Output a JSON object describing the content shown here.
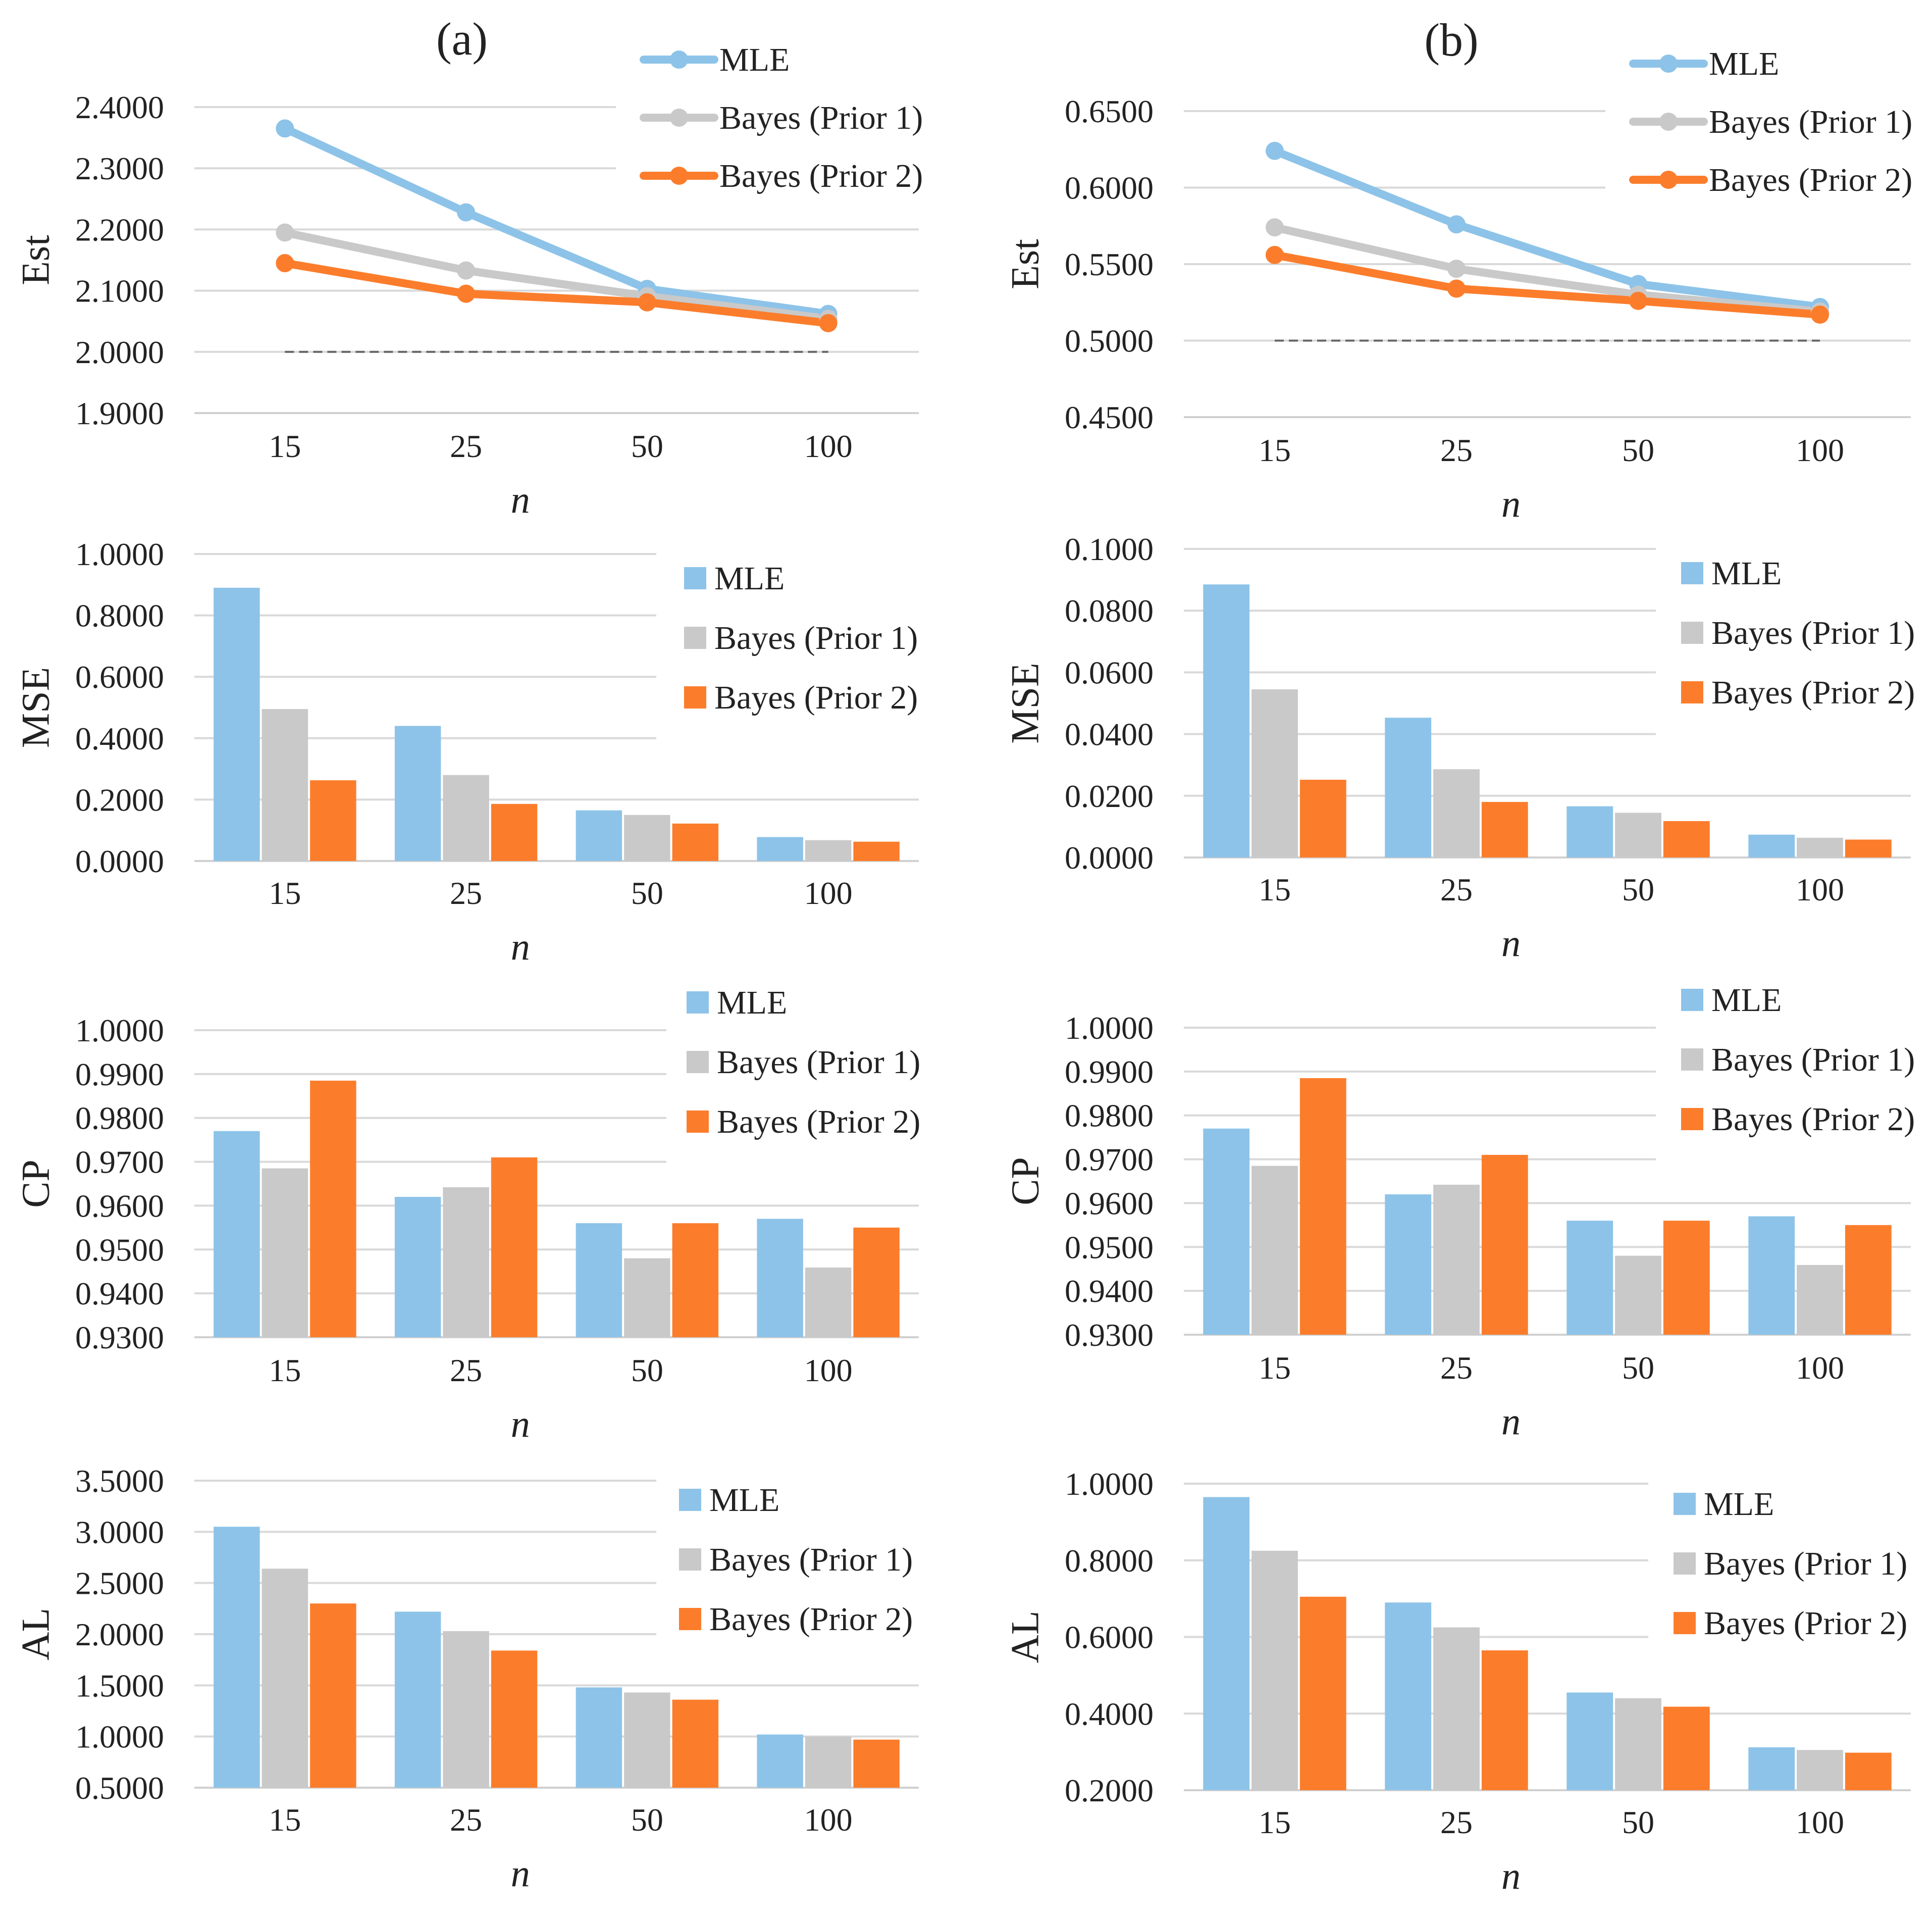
{
  "colors": {
    "mle": "#8dc3e8",
    "prior1": "#c9c9c9",
    "prior2": "#fb7d2c",
    "grid": "#d9d9d9",
    "dashed": "#666666",
    "baseline": "#d0d0d0"
  },
  "chart_data": [
    {
      "id": "a-est",
      "panel": "(a)",
      "type": "line",
      "ylabel": "Est",
      "xlabel": "n",
      "categories": [
        "15",
        "25",
        "50",
        "100"
      ],
      "ylim": [
        1.9,
        2.4
      ],
      "yticks": [
        "1.9000",
        "2.0000",
        "2.1000",
        "2.2000",
        "2.3000",
        "2.4000"
      ],
      "reference": 2.0,
      "legend": "top-right",
      "series": [
        {
          "name": "MLE",
          "key": "mle",
          "values": [
            2.365,
            2.228,
            2.103,
            2.062
          ]
        },
        {
          "name": "Bayes (Prior 1)",
          "key": "prior1",
          "values": [
            2.195,
            2.133,
            2.091,
            2.054
          ]
        },
        {
          "name": "Bayes (Prior 2)",
          "key": "prior2",
          "values": [
            2.145,
            2.095,
            2.081,
            2.047
          ]
        }
      ]
    },
    {
      "id": "b-est",
      "panel": "(b)",
      "type": "line",
      "ylabel": "Est",
      "xlabel": "n",
      "categories": [
        "15",
        "25",
        "50",
        "100"
      ],
      "ylim": [
        0.45,
        0.65
      ],
      "yticks": [
        "0.4500",
        "0.5000",
        "0.5500",
        "0.6000",
        "0.6500"
      ],
      "reference": 0.5,
      "legend": "top-right",
      "series": [
        {
          "name": "MLE",
          "key": "mle",
          "values": [
            0.624,
            0.576,
            0.537,
            0.522
          ]
        },
        {
          "name": "Bayes (Prior 1)",
          "key": "prior1",
          "values": [
            0.574,
            0.547,
            0.53,
            0.519
          ]
        },
        {
          "name": "Bayes (Prior 2)",
          "key": "prior2",
          "values": [
            0.556,
            0.534,
            0.526,
            0.517
          ]
        }
      ]
    },
    {
      "id": "a-mse",
      "type": "bar",
      "ylabel": "MSE",
      "xlabel": "n",
      "categories": [
        "15",
        "25",
        "50",
        "100"
      ],
      "ylim": [
        0,
        1.0
      ],
      "yticks": [
        "0.0000",
        "0.2000",
        "0.4000",
        "0.6000",
        "0.8000",
        "1.0000"
      ],
      "legend": "top-right",
      "series": [
        {
          "name": "MLE",
          "key": "mle",
          "values": [
            0.89,
            0.44,
            0.165,
            0.078
          ]
        },
        {
          "name": "Bayes (Prior 1)",
          "key": "prior1",
          "values": [
            0.495,
            0.28,
            0.15,
            0.068
          ]
        },
        {
          "name": "Bayes (Prior 2)",
          "key": "prior2",
          "values": [
            0.263,
            0.186,
            0.122,
            0.063
          ]
        }
      ]
    },
    {
      "id": "b-mse",
      "type": "bar",
      "ylabel": "MSE",
      "xlabel": "n",
      "categories": [
        "15",
        "25",
        "50",
        "100"
      ],
      "ylim": [
        0,
        0.1
      ],
      "yticks": [
        "0.0000",
        "0.0200",
        "0.0400",
        "0.0600",
        "0.0800",
        "0.1000"
      ],
      "legend": "top-right",
      "series": [
        {
          "name": "MLE",
          "key": "mle",
          "values": [
            0.0885,
            0.0453,
            0.0166,
            0.0074
          ]
        },
        {
          "name": "Bayes (Prior 1)",
          "key": "prior1",
          "values": [
            0.0545,
            0.0286,
            0.0145,
            0.0064
          ]
        },
        {
          "name": "Bayes (Prior 2)",
          "key": "prior2",
          "values": [
            0.0252,
            0.018,
            0.0118,
            0.0058
          ]
        }
      ]
    },
    {
      "id": "a-cp",
      "type": "bar",
      "ylabel": "CP",
      "xlabel": "n",
      "categories": [
        "15",
        "25",
        "50",
        "100"
      ],
      "ylim": [
        0.93,
        1.0
      ],
      "yticks": [
        "0.9300",
        "0.9400",
        "0.9500",
        "0.9600",
        "0.9700",
        "0.9800",
        "0.9900",
        "1.0000"
      ],
      "legend": "top-right",
      "series": [
        {
          "name": "MLE",
          "key": "mle",
          "values": [
            0.977,
            0.962,
            0.956,
            0.957
          ]
        },
        {
          "name": "Bayes (Prior 1)",
          "key": "prior1",
          "values": [
            0.9685,
            0.9642,
            0.948,
            0.9459
          ]
        },
        {
          "name": "Bayes (Prior 2)",
          "key": "prior2",
          "values": [
            0.9885,
            0.971,
            0.956,
            0.955
          ]
        }
      ]
    },
    {
      "id": "b-cp",
      "type": "bar",
      "ylabel": "CP",
      "xlabel": "n",
      "categories": [
        "15",
        "25",
        "50",
        "100"
      ],
      "ylim": [
        0.93,
        1.0
      ],
      "yticks": [
        "0.9300",
        "0.9400",
        "0.9500",
        "0.9600",
        "0.9700",
        "0.9800",
        "0.9900",
        "1.0000"
      ],
      "legend": "top-right",
      "series": [
        {
          "name": "MLE",
          "key": "mle",
          "values": [
            0.977,
            0.962,
            0.956,
            0.957
          ]
        },
        {
          "name": "Bayes (Prior 1)",
          "key": "prior1",
          "values": [
            0.9685,
            0.9642,
            0.948,
            0.9459
          ]
        },
        {
          "name": "Bayes (Prior 2)",
          "key": "prior2",
          "values": [
            0.9885,
            0.971,
            0.956,
            0.955
          ]
        }
      ]
    },
    {
      "id": "a-al",
      "type": "bar",
      "ylabel": "AL",
      "xlabel": "n",
      "categories": [
        "15",
        "25",
        "50",
        "100"
      ],
      "ylim": [
        0.5,
        3.5
      ],
      "yticks": [
        "0.5000",
        "1.0000",
        "1.5000",
        "2.0000",
        "2.5000",
        "3.0000",
        "3.5000"
      ],
      "legend": "top-right",
      "series": [
        {
          "name": "MLE",
          "key": "mle",
          "values": [
            3.05,
            2.22,
            1.48,
            1.02
          ]
        },
        {
          "name": "Bayes (Prior 1)",
          "key": "prior1",
          "values": [
            2.64,
            2.03,
            1.43,
            1.0
          ]
        },
        {
          "name": "Bayes (Prior 2)",
          "key": "prior2",
          "values": [
            2.3,
            1.84,
            1.36,
            0.97
          ]
        }
      ]
    },
    {
      "id": "b-al",
      "type": "bar",
      "ylabel": "AL",
      "xlabel": "n",
      "categories": [
        "15",
        "25",
        "50",
        "100"
      ],
      "ylim": [
        0.2,
        1.0
      ],
      "yticks": [
        "0.2000",
        "0.4000",
        "0.6000",
        "0.8000",
        "1.0000"
      ],
      "legend": "top-right",
      "series": [
        {
          "name": "MLE",
          "key": "mle",
          "values": [
            0.965,
            0.69,
            0.455,
            0.312
          ]
        },
        {
          "name": "Bayes (Prior 1)",
          "key": "prior1",
          "values": [
            0.825,
            0.625,
            0.44,
            0.305
          ]
        },
        {
          "name": "Bayes (Prior 2)",
          "key": "prior2",
          "values": [
            0.705,
            0.565,
            0.418,
            0.298
          ]
        }
      ]
    }
  ]
}
